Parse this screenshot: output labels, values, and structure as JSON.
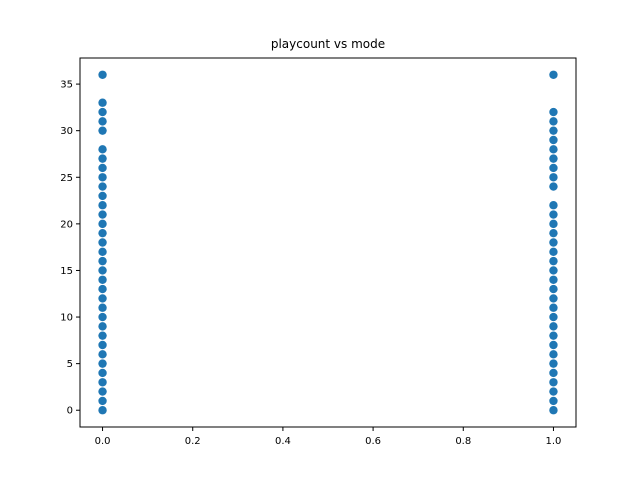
{
  "chart_data": {
    "type": "scatter",
    "title": "playcount vs mode",
    "xlabel": "",
    "ylabel": "",
    "xlim": [
      -0.05,
      1.05
    ],
    "ylim": [
      -1.8,
      37.8
    ],
    "x_ticks": [
      0.0,
      0.2,
      0.4,
      0.6,
      0.8,
      1.0
    ],
    "x_tick_labels": [
      "0.0",
      "0.2",
      "0.4",
      "0.6",
      "0.8",
      "1.0"
    ],
    "y_ticks": [
      0,
      5,
      10,
      15,
      20,
      25,
      30,
      35
    ],
    "y_tick_labels": [
      "0",
      "5",
      "10",
      "15",
      "20",
      "25",
      "30",
      "35"
    ],
    "grid": false,
    "legend": "none",
    "marker_color": "#1f77b4",
    "series": [
      {
        "x_value": 0,
        "y": [
          0,
          1,
          2,
          3,
          4,
          5,
          6,
          7,
          8,
          9,
          10,
          11,
          12,
          13,
          14,
          15,
          16,
          17,
          18,
          19,
          20,
          21,
          22,
          23,
          24,
          25,
          26,
          27,
          28,
          30,
          31,
          32,
          33,
          36
        ]
      },
      {
        "x_value": 1,
        "y": [
          0,
          1,
          2,
          3,
          4,
          5,
          6,
          7,
          8,
          9,
          10,
          11,
          12,
          13,
          14,
          15,
          16,
          17,
          18,
          19,
          20,
          21,
          22,
          24,
          25,
          26,
          27,
          28,
          29,
          30,
          31,
          32,
          36
        ]
      }
    ]
  }
}
